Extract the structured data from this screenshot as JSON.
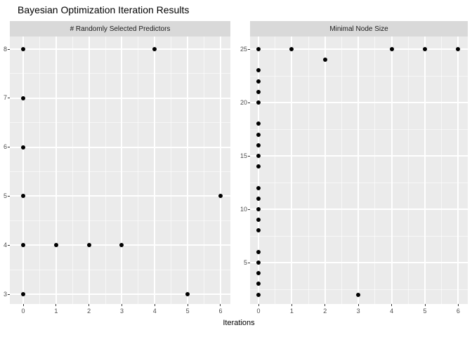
{
  "chart_data": {
    "type": "scatter",
    "title": "Bayesian Optimization Iteration Results",
    "xlabel": "Iterations",
    "x_range": [
      0,
      6
    ],
    "grid": "on",
    "legend": "none",
    "facets": [
      {
        "label": "# Randomly Selected Predictors",
        "x_ticks": [
          0,
          1,
          2,
          3,
          4,
          5,
          6
        ],
        "y_ticks": [
          3,
          4,
          5,
          6,
          7,
          8
        ],
        "y_range": [
          3,
          8
        ],
        "points": [
          [
            0,
            8
          ],
          [
            0,
            7
          ],
          [
            0,
            6
          ],
          [
            0,
            5
          ],
          [
            0,
            4
          ],
          [
            0,
            3
          ],
          [
            1,
            4
          ],
          [
            2,
            4
          ],
          [
            3,
            4
          ],
          [
            4,
            8
          ],
          [
            5,
            3
          ],
          [
            6,
            5
          ]
        ]
      },
      {
        "label": "Minimal Node Size",
        "x_ticks": [
          0,
          1,
          2,
          3,
          4,
          5,
          6
        ],
        "y_ticks": [
          5,
          10,
          15,
          20,
          25
        ],
        "y_range": [
          2,
          25
        ],
        "points": [
          [
            0,
            25
          ],
          [
            0,
            23
          ],
          [
            0,
            22
          ],
          [
            0,
            21
          ],
          [
            0,
            20
          ],
          [
            0,
            18
          ],
          [
            0,
            17
          ],
          [
            0,
            16
          ],
          [
            0,
            15
          ],
          [
            0,
            14
          ],
          [
            0,
            12
          ],
          [
            0,
            11
          ],
          [
            0,
            10
          ],
          [
            0,
            9
          ],
          [
            0,
            8
          ],
          [
            0,
            6
          ],
          [
            0,
            5
          ],
          [
            0,
            4
          ],
          [
            0,
            3
          ],
          [
            0,
            2
          ],
          [
            1,
            25
          ],
          [
            2,
            24
          ],
          [
            3,
            2
          ],
          [
            4,
            25
          ],
          [
            5,
            25
          ],
          [
            6,
            25
          ]
        ]
      }
    ]
  },
  "colors": {
    "background": "#FFFFFF",
    "panel_bg": "#EBEBEB",
    "strip_bg": "#D9D9D9",
    "gridline": "#FFFFFF",
    "point": "#000000",
    "axis_text": "#4D4D4D",
    "strip_text": "#1A1A1A",
    "title_text": "#000000",
    "tick_mark": "#333333"
  }
}
